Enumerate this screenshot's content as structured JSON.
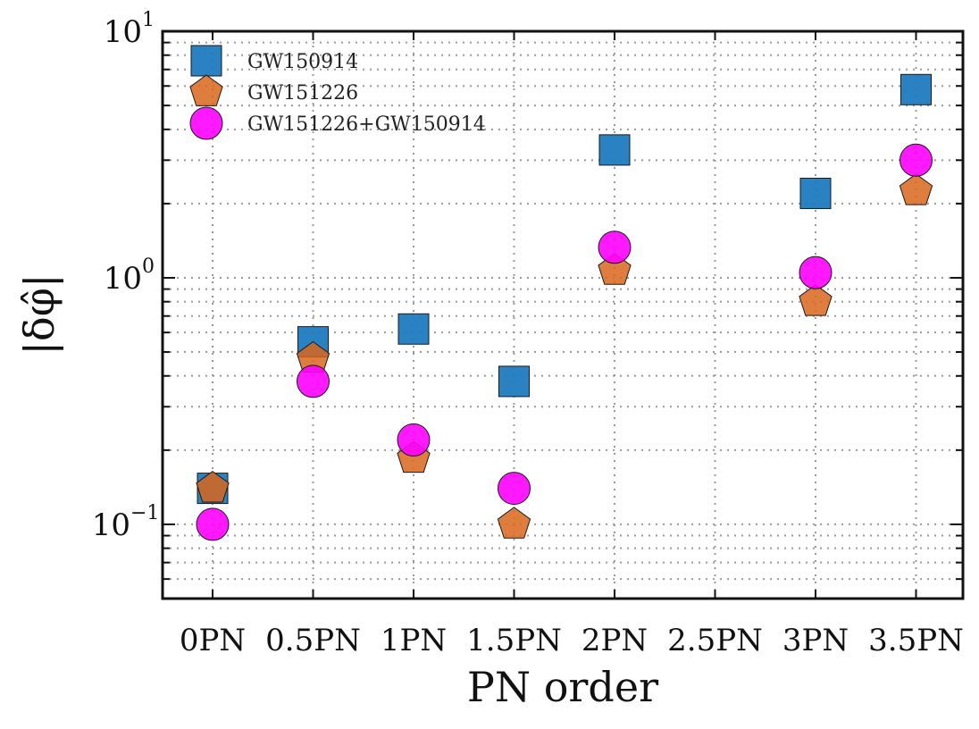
{
  "chart_data": {
    "type": "scatter",
    "xlabel": "PN order",
    "ylabel": "|δφ̂|",
    "yscale": "log",
    "ylim": [
      0.05,
      10
    ],
    "categories": [
      "0PN",
      "0.5PN",
      "1PN",
      "1.5PN",
      "2PN",
      "2.5PN",
      "3PN",
      "3.5PN"
    ],
    "y_major_ticks": [
      {
        "value": 0.1,
        "base": "10",
        "exp": "−1"
      },
      {
        "value": 1,
        "base": "10",
        "exp": "0"
      },
      {
        "value": 10,
        "base": "10",
        "exp": "1"
      }
    ],
    "grid": true,
    "legend_position": "top-left",
    "series": [
      {
        "name": "GW150914",
        "marker": "square",
        "color": "#1f7bbf",
        "values": [
          0.14,
          0.55,
          0.62,
          0.38,
          3.3,
          null,
          2.2,
          5.8
        ]
      },
      {
        "name": "GW151226",
        "marker": "pentagon",
        "color": "#d9661c",
        "values": [
          0.14,
          0.47,
          0.185,
          0.1,
          1.07,
          null,
          0.8,
          2.25
        ]
      },
      {
        "name": "GW151226+GW150914",
        "marker": "circle",
        "color": "#ff00ff",
        "values": [
          0.1,
          0.38,
          0.22,
          0.14,
          1.33,
          null,
          1.05,
          3.0
        ]
      }
    ]
  }
}
